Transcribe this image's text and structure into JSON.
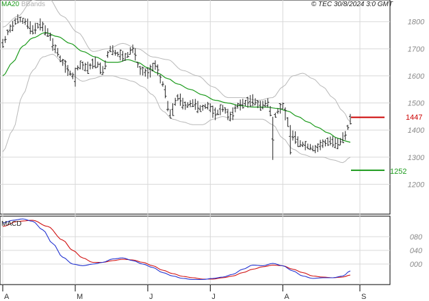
{
  "header": {
    "legend_ma20": "MA20",
    "legend_bbands": "BBands",
    "stamp": "© TEC 30/8/2024 3:0 GMT"
  },
  "colors": {
    "ma20": "#1a9a1a",
    "bbands": "#b8b8b8",
    "price": "#222222",
    "resistance": "#cc0000",
    "support": "#1a9a1a",
    "macd": "#1e2fd0",
    "signal": "#d01010",
    "axis": "#000000",
    "grid": "#d8d8d8"
  },
  "levels": {
    "resistance_label": "1447",
    "support_label": "1252"
  },
  "macd_panel": {
    "title": "MACD"
  },
  "chart_data": [
    {
      "type": "line",
      "subtype": "ohlc-bars",
      "title": "",
      "y_ticks": [
        "1800",
        "1700",
        "1600",
        "1500",
        "1400",
        "1300",
        "1200"
      ],
      "y_values": [
        1800,
        1700,
        1600,
        1500,
        1400,
        1300,
        1200
      ],
      "ylim": [
        1090,
        1880
      ],
      "x_labels": [
        "A",
        "M",
        "J",
        "J",
        "A",
        "S"
      ],
      "x_label_index": [
        0,
        29,
        58,
        83,
        112,
        140
      ],
      "n_bars": 140,
      "grid": "horizontal",
      "series": [
        {
          "name": "Price",
          "kind": "ohlc",
          "anchors": [
            [
              0,
              1720
            ],
            [
              3,
              1775
            ],
            [
              6,
              1810
            ],
            [
              9,
              1800
            ],
            [
              12,
              1770
            ],
            [
              15,
              1790
            ],
            [
              18,
              1760
            ],
            [
              21,
              1700
            ],
            [
              24,
              1650
            ],
            [
              26,
              1620
            ],
            [
              28,
              1600
            ],
            [
              31,
              1640
            ],
            [
              34,
              1630
            ],
            [
              37,
              1650
            ],
            [
              40,
              1620
            ],
            [
              43,
              1700
            ],
            [
              46,
              1680
            ],
            [
              49,
              1670
            ],
            [
              52,
              1700
            ],
            [
              55,
              1620
            ],
            [
              58,
              1610
            ],
            [
              61,
              1640
            ],
            [
              64,
              1570
            ],
            [
              67,
              1460
            ],
            [
              70,
              1520
            ],
            [
              73,
              1490
            ],
            [
              76,
              1500
            ],
            [
              79,
              1480
            ],
            [
              82,
              1490
            ],
            [
              85,
              1460
            ],
            [
              88,
              1480
            ],
            [
              91,
              1450
            ],
            [
              94,
              1490
            ],
            [
              97,
              1500
            ],
            [
              100,
              1510
            ],
            [
              103,
              1490
            ],
            [
              106,
              1500
            ],
            [
              108,
              1440
            ],
            [
              110,
              1470
            ],
            [
              112,
              1490
            ],
            [
              114,
              1430
            ],
            [
              116,
              1380
            ],
            [
              119,
              1350
            ],
            [
              122,
              1340
            ],
            [
              125,
              1330
            ],
            [
              128,
              1350
            ],
            [
              131,
              1360
            ],
            [
              134,
              1350
            ],
            [
              137,
              1380
            ],
            [
              139,
              1440
            ]
          ]
        },
        {
          "name": "MA20",
          "kind": "line",
          "anchors": [
            [
              0,
              1600
            ],
            [
              4,
              1650
            ],
            [
              8,
              1710
            ],
            [
              12,
              1740
            ],
            [
              17,
              1760
            ],
            [
              22,
              1745
            ],
            [
              27,
              1720
            ],
            [
              32,
              1690
            ],
            [
              37,
              1670
            ],
            [
              42,
              1650
            ],
            [
              46,
              1650
            ],
            [
              50,
              1660
            ],
            [
              54,
              1650
            ],
            [
              58,
              1630
            ],
            [
              62,
              1610
            ],
            [
              66,
              1590
            ],
            [
              70,
              1570
            ],
            [
              75,
              1550
            ],
            [
              80,
              1530
            ],
            [
              85,
              1510
            ],
            [
              90,
              1500
            ],
            [
              95,
              1490
            ],
            [
              100,
              1485
            ],
            [
              105,
              1485
            ],
            [
              110,
              1480
            ],
            [
              114,
              1470
            ],
            [
              118,
              1450
            ],
            [
              122,
              1430
            ],
            [
              126,
              1410
            ],
            [
              130,
              1390
            ],
            [
              134,
              1370
            ],
            [
              137,
              1360
            ],
            [
              139,
              1355
            ]
          ]
        },
        {
          "name": "BBands",
          "kind": "band",
          "upper_anchors": [
            [
              0,
              1780
            ],
            [
              6,
              1820
            ],
            [
              12,
              1880
            ],
            [
              18,
              1890
            ],
            [
              24,
              1820
            ],
            [
              30,
              1760
            ],
            [
              36,
              1690
            ],
            [
              42,
              1700
            ],
            [
              48,
              1720
            ],
            [
              54,
              1700
            ],
            [
              60,
              1670
            ],
            [
              66,
              1660
            ],
            [
              72,
              1620
            ],
            [
              78,
              1600
            ],
            [
              84,
              1560
            ],
            [
              90,
              1520
            ],
            [
              96,
              1520
            ],
            [
              102,
              1510
            ],
            [
              108,
              1520
            ],
            [
              112,
              1560
            ],
            [
              116,
              1600
            ],
            [
              120,
              1610
            ],
            [
              124,
              1590
            ],
            [
              128,
              1560
            ],
            [
              132,
              1520
            ],
            [
              136,
              1470
            ],
            [
              139,
              1430
            ]
          ],
          "lower_anchors": [
            [
              0,
              1320
            ],
            [
              4,
              1400
            ],
            [
              8,
              1530
            ],
            [
              12,
              1620
            ],
            [
              16,
              1670
            ],
            [
              20,
              1680
            ],
            [
              24,
              1650
            ],
            [
              28,
              1600
            ],
            [
              32,
              1580
            ],
            [
              36,
              1590
            ],
            [
              40,
              1600
            ],
            [
              44,
              1600
            ],
            [
              48,
              1590
            ],
            [
              52,
              1580
            ],
            [
              56,
              1560
            ],
            [
              60,
              1530
            ],
            [
              64,
              1470
            ],
            [
              68,
              1440
            ],
            [
              72,
              1430
            ],
            [
              76,
              1420
            ],
            [
              80,
              1420
            ],
            [
              84,
              1440
            ],
            [
              88,
              1450
            ],
            [
              92,
              1440
            ],
            [
              96,
              1440
            ],
            [
              100,
              1440
            ],
            [
              104,
              1440
            ],
            [
              108,
              1420
            ],
            [
              112,
              1370
            ],
            [
              116,
              1330
            ],
            [
              120,
              1310
            ],
            [
              124,
              1300
            ],
            [
              128,
              1300
            ],
            [
              132,
              1290
            ],
            [
              136,
              1280
            ],
            [
              139,
              1300
            ]
          ]
        }
      ],
      "resistance": 1447,
      "support": 1252
    },
    {
      "type": "line",
      "title": "MACD",
      "y_ticks": [
        "080",
        "040",
        "000"
      ],
      "y_values": [
        80,
        40,
        0
      ],
      "ylim": [
        -60,
        140
      ],
      "n_bars": 140,
      "grid": "horizontal",
      "series": [
        {
          "name": "MACD",
          "anchors": [
            [
              0,
              120
            ],
            [
              4,
              128
            ],
            [
              8,
              132
            ],
            [
              12,
              125
            ],
            [
              16,
              100
            ],
            [
              20,
              60
            ],
            [
              24,
              20
            ],
            [
              28,
              0
            ],
            [
              32,
              -5
            ],
            [
              36,
              0
            ],
            [
              40,
              5
            ],
            [
              44,
              15
            ],
            [
              48,
              18
            ],
            [
              52,
              10
            ],
            [
              56,
              0
            ],
            [
              60,
              -10
            ],
            [
              64,
              -25
            ],
            [
              68,
              -35
            ],
            [
              72,
              -42
            ],
            [
              76,
              -45
            ],
            [
              80,
              -45
            ],
            [
              84,
              -42
            ],
            [
              88,
              -38
            ],
            [
              92,
              -30
            ],
            [
              96,
              -15
            ],
            [
              100,
              -3
            ],
            [
              104,
              -5
            ],
            [
              108,
              2
            ],
            [
              112,
              -5
            ],
            [
              116,
              -20
            ],
            [
              120,
              -35
            ],
            [
              124,
              -42
            ],
            [
              128,
              -40
            ],
            [
              132,
              -40
            ],
            [
              136,
              -35
            ],
            [
              139,
              -20
            ]
          ]
        },
        {
          "name": "Signal",
          "anchors": [
            [
              0,
              110
            ],
            [
              6,
              125
            ],
            [
              12,
              128
            ],
            [
              18,
              110
            ],
            [
              24,
              70
            ],
            [
              28,
              40
            ],
            [
              32,
              18
            ],
            [
              36,
              5
            ],
            [
              40,
              5
            ],
            [
              44,
              10
            ],
            [
              48,
              14
            ],
            [
              52,
              12
            ],
            [
              56,
              5
            ],
            [
              60,
              -5
            ],
            [
              64,
              -18
            ],
            [
              68,
              -28
            ],
            [
              72,
              -36
            ],
            [
              76,
              -40
            ],
            [
              80,
              -44
            ],
            [
              84,
              -44
            ],
            [
              88,
              -40
            ],
            [
              92,
              -35
            ],
            [
              96,
              -25
            ],
            [
              100,
              -15
            ],
            [
              104,
              -8
            ],
            [
              108,
              -3
            ],
            [
              112,
              -5
            ],
            [
              116,
              -15
            ],
            [
              120,
              -25
            ],
            [
              124,
              -35
            ],
            [
              128,
              -38
            ],
            [
              132,
              -40
            ],
            [
              136,
              -38
            ],
            [
              139,
              -32
            ]
          ]
        }
      ]
    }
  ]
}
